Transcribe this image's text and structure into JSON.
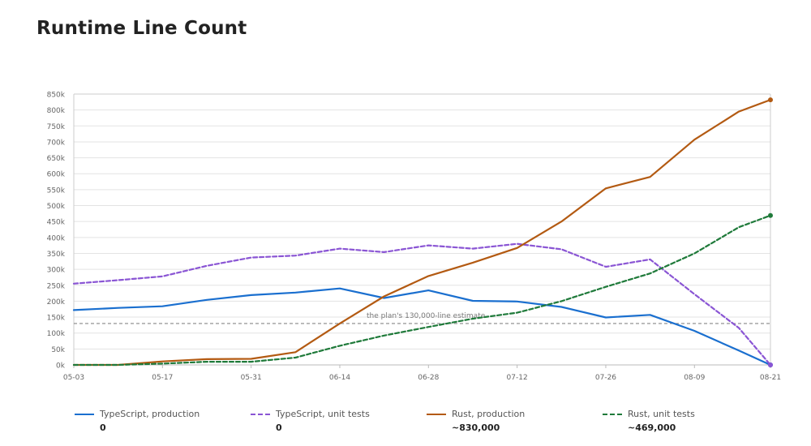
{
  "title": "Runtime Line Count",
  "chart_data": {
    "type": "line",
    "title": "Runtime Line Count",
    "xlabel": "",
    "ylabel": "",
    "x": [
      "05-03",
      "05-10",
      "05-17",
      "05-24",
      "05-31",
      "06-07",
      "06-14",
      "06-21",
      "06-28",
      "07-05",
      "07-12",
      "07-19",
      "07-26",
      "08-02",
      "08-09",
      "08-16",
      "08-21"
    ],
    "xticks": [
      "05-03",
      "05-17",
      "05-31",
      "06-14",
      "06-28",
      "07-12",
      "07-26",
      "08-09",
      "08-21"
    ],
    "ylim": [
      0,
      850000
    ],
    "yticks": [
      {
        "value": 0,
        "label": "0k"
      },
      {
        "value": 50000,
        "label": "50k"
      },
      {
        "value": 100000,
        "label": "100k"
      },
      {
        "value": 150000,
        "label": "150k"
      },
      {
        "value": 200000,
        "label": "200k"
      },
      {
        "value": 250000,
        "label": "250k"
      },
      {
        "value": 300000,
        "label": "300k"
      },
      {
        "value": 350000,
        "label": "350k"
      },
      {
        "value": 400000,
        "label": "400k"
      },
      {
        "value": 450000,
        "label": "450k"
      },
      {
        "value": 500000,
        "label": "500k"
      },
      {
        "value": 550000,
        "label": "550k"
      },
      {
        "value": 600000,
        "label": "600k"
      },
      {
        "value": 650000,
        "label": "650k"
      },
      {
        "value": 700000,
        "label": "700k"
      },
      {
        "value": 750000,
        "label": "750k"
      },
      {
        "value": 800000,
        "label": "800k"
      },
      {
        "value": 850000,
        "label": "850k"
      }
    ],
    "grid": true,
    "legend_position": "bottom",
    "reference_line": {
      "value": 130000,
      "label": "the plan's 130,000-line estimate",
      "color": "#888888"
    },
    "series": [
      {
        "name": "TypeScript, production",
        "legend_value": "0",
        "color": "#1a6fcf",
        "dashed": false,
        "end_marker": true,
        "values": [
          172000,
          179000,
          184000,
          204000,
          219000,
          227000,
          240000,
          210000,
          234000,
          201000,
          199000,
          182000,
          149000,
          157000,
          107000,
          45000,
          0
        ]
      },
      {
        "name": "TypeScript, unit tests",
        "legend_value": "0",
        "color": "#8a55d4",
        "dashed": true,
        "end_marker": true,
        "values": [
          255000,
          266000,
          278000,
          311000,
          337000,
          343000,
          365000,
          354000,
          375000,
          365000,
          380000,
          363000,
          308000,
          331000,
          222000,
          116000,
          0
        ]
      },
      {
        "name": "Rust, production",
        "legend_value": "~830,000",
        "color": "#b35a12",
        "dashed": false,
        "end_marker": true,
        "values": [
          0,
          0,
          11000,
          18000,
          19000,
          40000,
          130000,
          215000,
          279000,
          321000,
          367000,
          450000,
          554000,
          590000,
          707000,
          795000,
          832000
        ]
      },
      {
        "name": "Rust, unit tests",
        "legend_value": "~469,000",
        "color": "#1f7a3a",
        "dashed": true,
        "end_marker": true,
        "values": [
          0,
          0,
          4000,
          10000,
          10000,
          23000,
          60000,
          92000,
          119000,
          145000,
          164000,
          200000,
          245000,
          287000,
          350000,
          432000,
          469000
        ]
      }
    ]
  }
}
